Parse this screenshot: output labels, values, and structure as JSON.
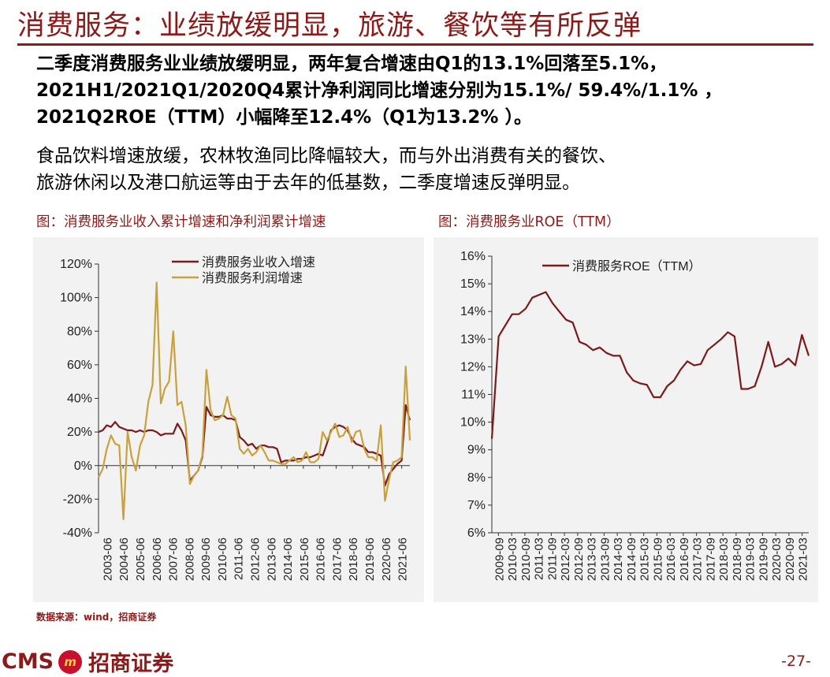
{
  "header": {
    "title": "消费服务：业绩放缓明显，旅游、餐饮等有所反弹"
  },
  "body": {
    "para1_line1": "二季度消费服务业业绩放缓明显，两年复合增速由Q1的13.1%回落至5.1%，",
    "para1_line2": "2021H1/2021Q1/2020Q4累计净利润同比增速分别为15.1%/ 59.4%/1.1% ，",
    "para1_line3": "2021Q2ROE（TTM）小幅降至12.4%（Q1为13.2% ）。",
    "para2_line1": "食品饮料增速放缓，农林牧渔同比降幅较大，而与外出消费有关的餐饮、",
    "para2_line2": "旅游休闲以及港口航运等由于去年的低基数，二季度增速反弹明显。"
  },
  "charts_header": {
    "left_title": "图：消费服务业收入累计增速和净利润累计增速",
    "right_title": "图：消费服务业ROE（TTM）"
  },
  "footer": {
    "source": "数据来源：wind，招商证券",
    "logo_text": "CMS",
    "logo_mark": "m",
    "logo_name": "招商证券",
    "page_number": "-27-"
  },
  "colors": {
    "brand": "#8b1a1a",
    "revenue_line": "#7a1a1a",
    "profit_line": "#c9a13b",
    "panel_bg": "#f2f2f2"
  },
  "chart_data": [
    {
      "type": "line",
      "x_labels": [
        "2003-06",
        "2004-06",
        "2005-06",
        "2006-06",
        "2007-06",
        "2008-06",
        "2009-06",
        "2010-06",
        "2011-06",
        "2012-06",
        "2013-06",
        "2014-06",
        "2015-06",
        "2016-06",
        "2017-06",
        "2018-06",
        "2019-06",
        "2020-06",
        "2021-06"
      ],
      "ylim": [
        -40,
        120
      ],
      "yticks": [
        -40,
        -20,
        0,
        20,
        40,
        60,
        80,
        100,
        120
      ],
      "ytick_labels": [
        "-40%",
        "-20%",
        "0%",
        "20%",
        "40%",
        "60%",
        "80%",
        "100%",
        "120%"
      ],
      "legend_position": "top",
      "series": [
        {
          "name": "消费服务业收入增速",
          "color": "#7a1a1a",
          "values": [
            20,
            21,
            24,
            23,
            26,
            23,
            22,
            21,
            21,
            20,
            21,
            20,
            21,
            21,
            20,
            18,
            19,
            19,
            19,
            25,
            21,
            15,
            -9,
            -6,
            -3,
            5,
            35,
            30,
            29,
            29,
            30,
            28,
            28,
            27,
            17,
            15,
            12,
            13,
            10,
            12,
            12,
            11,
            11,
            10,
            2,
            3,
            3,
            3,
            4,
            4,
            5,
            5,
            6,
            7,
            6,
            13,
            21,
            23,
            24,
            23,
            21,
            16,
            13,
            12,
            11,
            8,
            8,
            7,
            6,
            -12,
            -5,
            -2,
            1,
            3,
            36,
            27
          ]
        },
        {
          "name": "消费服务利润增速",
          "color": "#c9a13b",
          "values": [
            -7,
            -2,
            10,
            18,
            13,
            12,
            -32,
            20,
            5,
            -3,
            12,
            18,
            38,
            48,
            109,
            37,
            46,
            50,
            80,
            36,
            38,
            24,
            -11,
            -6,
            -3,
            6,
            57,
            33,
            27,
            28,
            30,
            41,
            30,
            28,
            10,
            7,
            10,
            6,
            8,
            12,
            8,
            3,
            3,
            2,
            1,
            1,
            3,
            5,
            2,
            3,
            8,
            2,
            2,
            4,
            20,
            15,
            20,
            25,
            17,
            18,
            23,
            14,
            20,
            21,
            10,
            5,
            5,
            3,
            24,
            -21,
            -8,
            2,
            3,
            5,
            59,
            15
          ]
        }
      ]
    },
    {
      "type": "line",
      "x_labels": [
        "2009-09",
        "2010-03",
        "2010-09",
        "2011-03",
        "2011-09",
        "2012-03",
        "2012-09",
        "2013-03",
        "2013-09",
        "2014-03",
        "2014-09",
        "2015-03",
        "2015-09",
        "2016-03",
        "2016-09",
        "2017-03",
        "2017-09",
        "2018-03",
        "2018-09",
        "2019-03",
        "2019-09",
        "2020-03",
        "2020-09",
        "2021-03"
      ],
      "ylim": [
        6,
        16
      ],
      "yticks": [
        6,
        7,
        8,
        9,
        10,
        11,
        12,
        13,
        14,
        15,
        16
      ],
      "ytick_labels": [
        "6%",
        "7%",
        "8%",
        "9%",
        "10%",
        "11%",
        "12%",
        "13%",
        "14%",
        "15%",
        "16%"
      ],
      "legend_position": "top",
      "series": [
        {
          "name": "消费服务ROE（TTM）",
          "color": "#7a1a1a",
          "values": [
            9.4,
            13.1,
            13.5,
            13.9,
            13.9,
            14.1,
            14.5,
            14.6,
            14.7,
            14.3,
            14.0,
            13.7,
            13.6,
            12.9,
            12.8,
            12.6,
            12.7,
            12.5,
            12.4,
            12.4,
            11.8,
            11.5,
            11.4,
            11.35,
            10.9,
            10.9,
            11.3,
            11.5,
            11.9,
            12.2,
            12.05,
            12.1,
            12.6,
            12.8,
            13.0,
            13.25,
            13.1,
            11.2,
            11.2,
            11.3,
            12.0,
            12.9,
            12.0,
            12.1,
            12.3,
            12.05,
            13.15,
            12.4
          ]
        }
      ]
    }
  ]
}
